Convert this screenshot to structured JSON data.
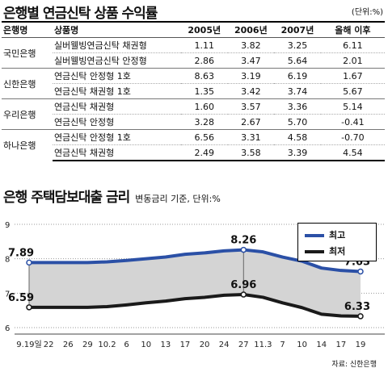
{
  "returns_table": {
    "title": "은행별 연금신탁 상품 수익률",
    "unit": "(단위:%)",
    "headers": [
      "은행명",
      "상품명",
      "2005년",
      "2006년",
      "2007년",
      "올해 이후"
    ],
    "groups": [
      {
        "bank": "국민은행",
        "rows": [
          {
            "product": "실버웰빙연금신탁 채권형",
            "v2005": "1.11",
            "v2006": "3.82",
            "v2007": "3.25",
            "ytd": "6.11"
          },
          {
            "product": "실버웰빙연금신탁 안정형",
            "v2005": "2.86",
            "v2006": "3.47",
            "v2007": "5.64",
            "ytd": "2.01"
          }
        ]
      },
      {
        "bank": "신한은행",
        "rows": [
          {
            "product": "연금신탁 안정형 1호",
            "v2005": "8.63",
            "v2006": "3.19",
            "v2007": "6.19",
            "ytd": "1.67"
          },
          {
            "product": "연금신탁 채권형 1호",
            "v2005": "1.35",
            "v2006": "3.42",
            "v2007": "3.74",
            "ytd": "5.67"
          }
        ]
      },
      {
        "bank": "우리은행",
        "rows": [
          {
            "product": "연금신탁 채권형",
            "v2005": "1.60",
            "v2006": "3.57",
            "v2007": "3.36",
            "ytd": "5.14"
          },
          {
            "product": "연금신탁 안정형",
            "v2005": "3.28",
            "v2006": "2.67",
            "v2007": "5.70",
            "ytd": "-0.41"
          }
        ]
      },
      {
        "bank": "하나은행",
        "rows": [
          {
            "product": "연금신탁 안정형 1호",
            "v2005": "6.56",
            "v2006": "3.31",
            "v2007": "4.58",
            "ytd": "-0.70"
          },
          {
            "product": "연금신탁 채권형",
            "v2005": "2.49",
            "v2006": "3.58",
            "v2007": "3.39",
            "ytd": "4.54"
          }
        ]
      }
    ]
  },
  "rate_chart": {
    "title": "은행 주택담보대출 금리",
    "subtitle": "변동금리 기준, 단위:%",
    "source": "자료: 신한은행"
  },
  "chart_data": {
    "type": "line",
    "title": "은행 주택담보대출 금리",
    "x": [
      "9.19일",
      "22",
      "26",
      "29",
      "10.2",
      "6",
      "10",
      "13",
      "17",
      "20",
      "24",
      "27",
      "11.3",
      "7",
      "10",
      "14",
      "17",
      "19"
    ],
    "series": [
      {
        "name": "최고",
        "color": "#2b50a6",
        "values": [
          7.89,
          7.89,
          7.89,
          7.89,
          7.91,
          7.95,
          8.0,
          8.05,
          8.13,
          8.17,
          8.23,
          8.26,
          8.2,
          8.05,
          7.93,
          7.73,
          7.66,
          7.63
        ]
      },
      {
        "name": "최저",
        "color": "#1a1a1a",
        "values": [
          6.59,
          6.59,
          6.59,
          6.59,
          6.61,
          6.66,
          6.72,
          6.77,
          6.84,
          6.88,
          6.94,
          6.96,
          6.88,
          6.72,
          6.58,
          6.39,
          6.34,
          6.33
        ]
      }
    ],
    "labeled_points": [
      {
        "series": "최고",
        "index": 0,
        "text": "7.89"
      },
      {
        "series": "최고",
        "index": 11,
        "text": "8.26"
      },
      {
        "series": "최고",
        "index": 17,
        "text": "7.63"
      },
      {
        "series": "최저",
        "index": 0,
        "text": "6.59"
      },
      {
        "series": "최저",
        "index": 11,
        "text": "6.96"
      },
      {
        "series": "최저",
        "index": 17,
        "text": "6.33"
      }
    ],
    "yticks": [
      "6",
      "7",
      "8",
      "9"
    ],
    "ylim": [
      6,
      9
    ],
    "fill_between": "#d4d4d4",
    "grid": "horizontal dotted",
    "legend": "top-right"
  }
}
